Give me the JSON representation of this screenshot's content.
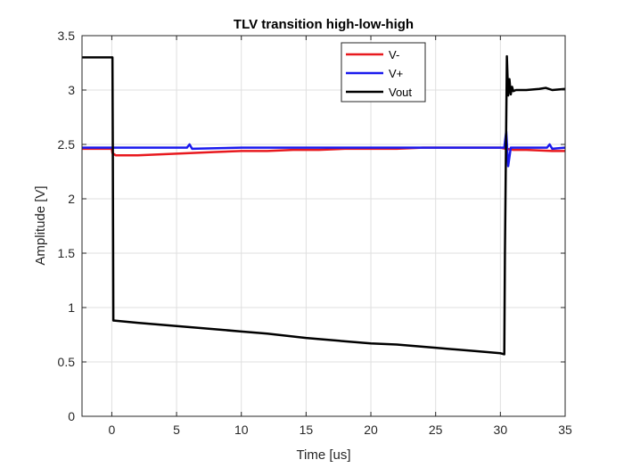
{
  "chart_data": {
    "type": "line",
    "title": "TLV transition high-low-high",
    "xlabel": "Time [us]",
    "ylabel": "Amplitude [V]",
    "xlim": [
      -2.3,
      35
    ],
    "ylim": [
      0,
      3.5
    ],
    "xticks": [
      0,
      5,
      10,
      15,
      20,
      25,
      30,
      35
    ],
    "yticks": [
      0,
      0.5,
      1,
      1.5,
      2,
      2.5,
      3,
      3.5
    ],
    "xtick_labels": [
      "0",
      "5",
      "10",
      "15",
      "20",
      "25",
      "30",
      "35"
    ],
    "ytick_labels": [
      "0",
      "0.5",
      "1",
      "1.5",
      "2",
      "2.5",
      "3",
      "3.5"
    ],
    "grid": true,
    "legend_position": "top-right",
    "series": [
      {
        "name": "V-",
        "color": "#e8191e",
        "x": [
          -2.3,
          -1.0,
          0.0,
          0.05,
          0.3,
          2.0,
          4.0,
          6.0,
          8.0,
          10.0,
          12.0,
          14.0,
          16.0,
          18.0,
          20.0,
          22.0,
          24.0,
          26.0,
          28.0,
          30.0,
          30.4,
          31.0,
          32.0,
          34.0,
          35.0
        ],
        "y": [
          2.46,
          2.46,
          2.46,
          2.42,
          2.4,
          2.4,
          2.41,
          2.42,
          2.43,
          2.44,
          2.44,
          2.45,
          2.45,
          2.46,
          2.46,
          2.46,
          2.47,
          2.47,
          2.47,
          2.47,
          2.46,
          2.45,
          2.45,
          2.44,
          2.44
        ]
      },
      {
        "name": "V+",
        "color": "#1a1aee",
        "x": [
          -2.3,
          0.0,
          2.0,
          5.8,
          6.0,
          6.2,
          10.0,
          15.0,
          20.0,
          25.0,
          30.0,
          30.3,
          30.45,
          30.6,
          30.8,
          32.0,
          33.6,
          33.8,
          34.0,
          35.0
        ],
        "y": [
          2.47,
          2.47,
          2.47,
          2.47,
          2.5,
          2.46,
          2.47,
          2.47,
          2.47,
          2.47,
          2.47,
          2.47,
          2.62,
          2.3,
          2.47,
          2.47,
          2.47,
          2.5,
          2.46,
          2.47
        ]
      },
      {
        "name": "Vout",
        "color": "#000000",
        "x": [
          -2.3,
          -1.0,
          0.05,
          0.08,
          0.12,
          0.2,
          2.0,
          5.0,
          8.0,
          10.0,
          12.0,
          15.0,
          18.0,
          20.0,
          22.0,
          25.0,
          28.0,
          30.0,
          30.3,
          30.35,
          30.5,
          30.6,
          30.7,
          30.8,
          30.9,
          31.0,
          31.2,
          32.0,
          33.0,
          33.5,
          34.0,
          35.0
        ],
        "y": [
          3.3,
          3.3,
          3.3,
          2.45,
          0.88,
          0.88,
          0.86,
          0.83,
          0.8,
          0.78,
          0.76,
          0.72,
          0.69,
          0.67,
          0.66,
          0.63,
          0.6,
          0.58,
          0.57,
          1.5,
          3.31,
          2.95,
          3.1,
          2.96,
          3.03,
          2.99,
          3.0,
          3.0,
          3.01,
          3.02,
          3.0,
          3.01
        ]
      }
    ]
  }
}
